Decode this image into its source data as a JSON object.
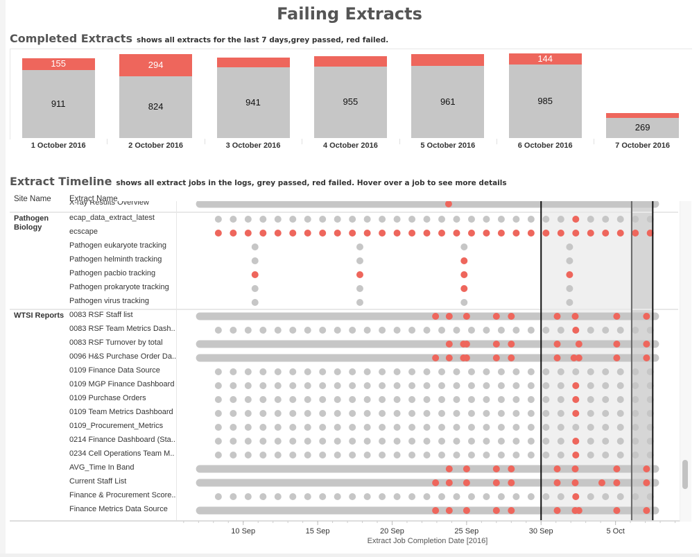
{
  "title": "Failing Extracts",
  "completed": {
    "title": "Completed Extracts",
    "subtitle": "shows all extracts for the last 7 days,grey passed, red failed."
  },
  "timeline": {
    "title": "Extract Timeline",
    "subtitle": "shows all extract jobs in the logs, grey passed, red failed. Hover over a job to see more details",
    "col_site": "Site Name",
    "col_extract": "Extract Name",
    "axis_title": "Extract Job Completion Date [2016]"
  },
  "colors": {
    "passed": "#c6c6c6",
    "failed": "#ee665c",
    "shade_light": "#f0f0f0",
    "shade_dark": "#d6d6d6"
  },
  "chart_data": [
    {
      "type": "bar",
      "stacked": true,
      "categories": [
        "1 October 2016",
        "2 October 2016",
        "3 October 2016",
        "4 October 2016",
        "5 October 2016",
        "6 October 2016",
        "7 October 2016"
      ],
      "series": [
        {
          "status": "passed",
          "values": [
            911,
            824,
            941,
            955,
            961,
            985,
            269
          ],
          "labels": [
            "911",
            "824",
            "941",
            "955",
            "961",
            "985",
            "269"
          ]
        },
        {
          "status": "failed",
          "values": [
            155,
            294,
            133,
            137,
            159,
            144,
            65
          ],
          "labels": [
            "155",
            "294",
            "",
            "",
            "",
            "144",
            ""
          ]
        }
      ],
      "ylim": [
        0,
        1130
      ]
    },
    {
      "type": "scatter",
      "xdomain": [
        "2016-09-05T13:00",
        "2016-10-09T05:00"
      ],
      "ticks": [
        {
          "date": "2016-09-10",
          "label": "10 Sep"
        },
        {
          "date": "2016-09-15",
          "label": "15 Sep"
        },
        {
          "date": "2016-09-20",
          "label": "20 Sep"
        },
        {
          "date": "2016-09-25",
          "label": "25 Sep"
        },
        {
          "date": "2016-09-30",
          "label": "30 Sep"
        },
        {
          "date": "2016-10-05",
          "label": "5 Oct"
        }
      ],
      "highlight": {
        "start": "2016-09-30T00:00",
        "recent_start": "2016-10-06T02:00",
        "end": "2016-10-07T12:00"
      },
      "sites": [
        {
          "name": "",
          "rows": [
            {
              "name": "X-ray Results Overview",
              "kind": "continuous",
              "start": "2016-09-07T02:00",
              "end": "2016-10-07T16:00",
              "failed": [
                "2016-09-23T19:00"
              ]
            }
          ]
        },
        {
          "name": "Pathogen Biology",
          "rows": [
            {
              "name": "ecap_data_extract_latest",
              "kind": "daily",
              "start": "2016-09-08",
              "end": "2016-10-07",
              "failed": [
                "2016-10-02"
              ]
            },
            {
              "name": "ecscape",
              "kind": "daily",
              "start": "2016-09-08",
              "end": "2016-10-07",
              "all_failed": true,
              "failed": []
            },
            {
              "name": "Pathogen eukaryote tracking",
              "kind": "jobs",
              "jobs": [
                "2016-09-10T19:00",
                "2016-09-17T20:00",
                "2016-09-24T20:00",
                "2016-10-01T22:00"
              ],
              "failed": []
            },
            {
              "name": "Pathogen helminth tracking",
              "kind": "jobs",
              "jobs": [
                "2016-09-10T19:00",
                "2016-09-17T20:00",
                "2016-09-24T20:00",
                "2016-10-01T22:00"
              ],
              "failed": [
                "2016-09-24T20:00"
              ]
            },
            {
              "name": "Pathogen pacbio tracking",
              "kind": "jobs",
              "jobs": [
                "2016-09-10T19:00",
                "2016-09-17T20:00",
                "2016-09-24T20:00",
                "2016-10-01T22:00"
              ],
              "failed": [
                "2016-09-10T19:00",
                "2016-09-17T20:00",
                "2016-09-24T20:00",
                "2016-10-01T22:00"
              ]
            },
            {
              "name": "Pathogen prokaryote tracking",
              "kind": "jobs",
              "jobs": [
                "2016-09-10T19:00",
                "2016-09-17T20:00",
                "2016-09-24T20:00",
                "2016-10-01T22:00"
              ],
              "failed": [
                "2016-09-24T20:00"
              ]
            },
            {
              "name": "Pathogen virus tracking",
              "kind": "jobs",
              "jobs": [
                "2016-09-10T19:00",
                "2016-09-17T20:00",
                "2016-09-24T20:00",
                "2016-10-01T22:00"
              ],
              "failed": []
            }
          ]
        },
        {
          "name": "WTSI Reports",
          "rows": [
            {
              "name": "0083 RSF Staff list",
              "kind": "continuous",
              "start": "2016-09-07T02:00",
              "end": "2016-10-07T16:00",
              "failed": [
                "2016-09-22T22:00",
                "2016-09-23T20:00",
                "2016-09-25T00:00",
                "2016-09-27T00:00",
                "2016-09-28T00:00",
                "2016-10-01T02:00",
                "2016-10-02T07:00",
                "2016-10-05T02:00",
                "2016-10-07T02:00"
              ]
            },
            {
              "name": "0083 RSF Team Metrics Dash..",
              "kind": "daily",
              "start": "2016-09-08",
              "end": "2016-10-07",
              "failed": [
                "2016-10-02"
              ]
            },
            {
              "name": "0083 RSF Turnover by total",
              "kind": "continuous",
              "start": "2016-09-07T02:00",
              "end": "2016-10-07T16:00",
              "failed": [
                "2016-09-23T20:00",
                "2016-09-24T19:00",
                "2016-09-25T00:00",
                "2016-09-27T00:00",
                "2016-09-28T00:00",
                "2016-10-01T02:00",
                "2016-10-02T13:00",
                "2016-10-05T02:00",
                "2016-10-07T02:00"
              ]
            },
            {
              "name": "0096 H&S Purchase Order Da..",
              "kind": "continuous",
              "start": "2016-09-07T02:00",
              "end": "2016-10-07T16:00",
              "failed": [
                "2016-09-22T22:00",
                "2016-09-23T20:00",
                "2016-09-24T19:00",
                "2016-09-25T00:00",
                "2016-09-27T00:00",
                "2016-09-28T00:00",
                "2016-10-01T02:00",
                "2016-10-02T05:00",
                "2016-10-02T13:00",
                "2016-10-05T02:00",
                "2016-10-07T02:00"
              ]
            },
            {
              "name": "0109 Finance Data Source",
              "kind": "daily",
              "start": "2016-09-08",
              "end": "2016-10-07",
              "failed": []
            },
            {
              "name": "0109 MGP Finance Dashboard",
              "kind": "daily",
              "start": "2016-09-08",
              "end": "2016-10-07",
              "failed": [
                "2016-10-02"
              ]
            },
            {
              "name": "0109 Purchase Orders",
              "kind": "daily",
              "start": "2016-09-08",
              "end": "2016-10-07",
              "failed": [
                "2016-10-02"
              ]
            },
            {
              "name": "0109 Team Metrics Dashboard",
              "kind": "daily",
              "start": "2016-09-08",
              "end": "2016-10-07",
              "failed": [
                "2016-10-02"
              ]
            },
            {
              "name": "0109_Procurement_Metrics",
              "kind": "daily",
              "start": "2016-09-08",
              "end": "2016-10-07",
              "failed": []
            },
            {
              "name": "0214 Finance Dashboard (Sta..",
              "kind": "daily",
              "start": "2016-09-08",
              "end": "2016-10-07",
              "failed": [
                "2016-10-02"
              ]
            },
            {
              "name": "0234 Cell Operations Team M..",
              "kind": "daily",
              "start": "2016-09-08",
              "end": "2016-10-07",
              "failed": [
                "2016-10-02"
              ]
            },
            {
              "name": "AVG_Time In Band",
              "kind": "continuous",
              "start": "2016-09-07T02:00",
              "end": "2016-10-07T16:00",
              "failed": [
                "2016-09-23T20:00",
                "2016-09-25T00:00",
                "2016-09-27T00:00",
                "2016-09-28T00:00",
                "2016-10-01T02:00",
                "2016-10-02T07:00",
                "2016-10-05T02:00",
                "2016-10-07T02:00"
              ]
            },
            {
              "name": "Current Staff List",
              "kind": "continuous",
              "start": "2016-09-07T02:00",
              "end": "2016-10-07T16:00",
              "failed": [
                "2016-09-22T22:00",
                "2016-09-23T20:00",
                "2016-09-25T00:00",
                "2016-09-27T00:00",
                "2016-09-28T00:00",
                "2016-10-01T02:00",
                "2016-10-02T07:00",
                "2016-10-04T02:00",
                "2016-10-05T02:00",
                "2016-10-07T02:00"
              ]
            },
            {
              "name": "Finance & Procurement Score..",
              "kind": "daily",
              "start": "2016-09-08",
              "end": "2016-10-07",
              "failed": [
                "2016-10-02"
              ]
            },
            {
              "name": "Finance Metrics Data Source",
              "kind": "continuous",
              "start": "2016-09-07T02:00",
              "end": "2016-10-07T16:00",
              "failed": [
                "2016-09-22T22:00",
                "2016-09-23T20:00",
                "2016-09-25T00:00",
                "2016-09-27T00:00",
                "2016-09-28T00:00",
                "2016-10-01T02:00",
                "2016-10-02T07:00",
                "2016-10-02T13:00",
                "2016-10-05T02:00",
                "2016-10-07T02:00"
              ]
            }
          ]
        }
      ]
    }
  ]
}
